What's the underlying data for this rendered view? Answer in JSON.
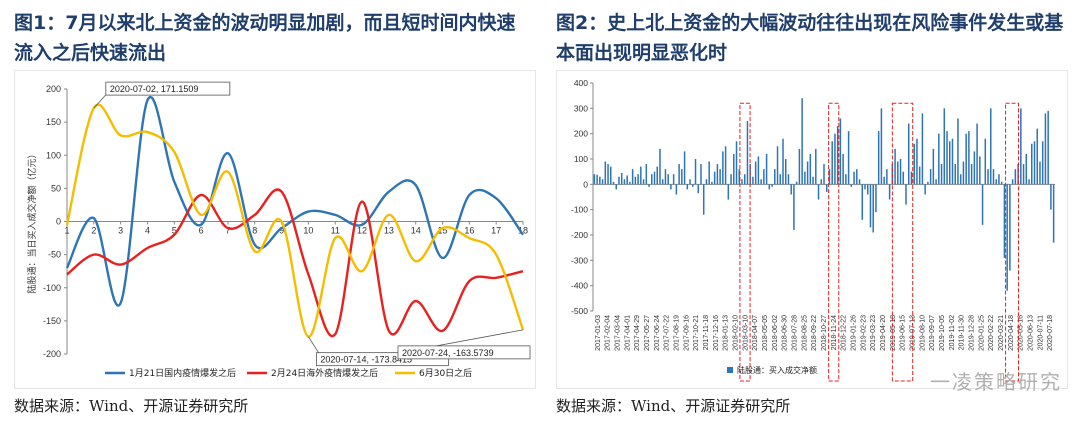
{
  "left": {
    "title": "图1：7月以来北上资金的波动明显加剧，而且短时间内快速流入之后快速流出",
    "source": "数据来源：Wind、开源证券研究所"
  },
  "right": {
    "title": "图2：史上北上资金的大幅波动往往出现在风险事件发生或基本面出现明显恶化时",
    "source": "数据来源：Wind、开源证券研究所"
  },
  "watermark": "一凌策略研究",
  "chart_data": [
    {
      "type": "line",
      "ylabel": "陆股通：当日买入成交净额（亿元）",
      "ylim": [
        -200,
        200
      ],
      "yticks": [
        -200,
        -150,
        -100,
        -50,
        0,
        50,
        100,
        150,
        200
      ],
      "x": [
        1,
        2,
        3,
        4,
        5,
        6,
        7,
        8,
        9,
        10,
        11,
        12,
        13,
        14,
        15,
        16,
        17,
        18
      ],
      "series": [
        {
          "name": "1月21日国内疫情爆发之后",
          "color": "#2e75b6",
          "values": [
            -70,
            5,
            -123,
            183,
            60,
            -5,
            103,
            -35,
            -10,
            15,
            10,
            -5,
            45,
            55,
            -55,
            40,
            35,
            -20
          ]
        },
        {
          "name": "2月24日海外疫情爆发之后",
          "color": "#e8211f",
          "values": [
            -80,
            -50,
            -65,
            -40,
            -20,
            40,
            -10,
            10,
            45,
            -80,
            -170,
            30,
            -165,
            -120,
            -165,
            -90,
            -85,
            -75
          ]
        },
        {
          "name": "6月30日之后",
          "color": "#f5bd00",
          "values": [
            -5,
            171.1509,
            130,
            135,
            105,
            10,
            75,
            -45,
            0,
            -173.8415,
            -25,
            -75,
            10,
            -60,
            -10,
            -25,
            -50,
            -163.5739
          ]
        }
      ],
      "annotations": [
        {
          "text": "2020-07-02, 171.1509",
          "series": 2,
          "index": 1
        },
        {
          "text": "2020-07-14, -173.8415",
          "series": 2,
          "index": 9
        },
        {
          "text": "2020-07-24, -163.5739",
          "series": 2,
          "index": 17
        }
      ],
      "legend": "bottom"
    },
    {
      "type": "bar",
      "ylim": [
        -500,
        400
      ],
      "yticks": [
        -500,
        -400,
        -300,
        -200,
        -100,
        0,
        100,
        200,
        300,
        400
      ],
      "series": [
        {
          "name": "陆股通：买入成交净额",
          "color": "#2e75b6"
        }
      ],
      "xlabels": [
        "2017-01-03",
        "2017-02-04",
        "2017-03-04",
        "2017-04-01",
        "2017-04-29",
        "2017-05-27",
        "2017-06-24",
        "2017-07-22",
        "2017-08-19",
        "2017-09-16",
        "2017-10-21",
        "2017-11-18",
        "2017-12-16",
        "2018-01-13",
        "2018-02-10",
        "2018-03-10",
        "2018-04-07",
        "2018-05-05",
        "2018-06-02",
        "2018-06-30",
        "2018-07-28",
        "2018-08-25",
        "2018-09-22",
        "2018-10-27",
        "2018-11-24",
        "2018-12-22",
        "2019-01-26",
        "2019-02-23",
        "2019-03-23",
        "2019-04-20",
        "2019-05-18",
        "2019-06-15",
        "2019-07-13",
        "2019-08-10",
        "2019-09-07",
        "2019-10-05",
        "2019-11-02",
        "2019-11-30",
        "2019-12-28",
        "2020-01-25",
        "2020-02-22",
        "2020-03-21",
        "2020-04-18",
        "2020-05-16",
        "2020-06-13",
        "2020-07-11",
        "2020-07-18"
      ],
      "values": [
        40,
        38,
        30,
        20,
        90,
        80,
        70,
        10,
        -20,
        30,
        45,
        20,
        35,
        10,
        60,
        30,
        40,
        70,
        20,
        80,
        -10,
        40,
        50,
        70,
        140,
        20,
        60,
        40,
        -20,
        40,
        -40,
        80,
        60,
        130,
        -20,
        20,
        -10,
        100,
        -35,
        80,
        -120,
        20,
        90,
        10,
        50,
        80,
        60,
        130,
        150,
        -60,
        40,
        120,
        170,
        60,
        20,
        40,
        250,
        80,
        30,
        90,
        110,
        20,
        60,
        120,
        -20,
        -10,
        60,
        150,
        40,
        180,
        100,
        40,
        -40,
        -180,
        10,
        140,
        340,
        50,
        90,
        120,
        30,
        140,
        -60,
        20,
        80,
        -30,
        60,
        170,
        200,
        230,
        260,
        120,
        40,
        210,
        -10,
        50,
        60,
        20,
        -140,
        -20,
        -40,
        -170,
        -190,
        -110,
        210,
        300,
        30,
        60,
        -60,
        80,
        140,
        90,
        100,
        50,
        -80,
        240,
        50,
        160,
        180,
        70,
        280,
        -40,
        10,
        60,
        140,
        20,
        200,
        80,
        300,
        210,
        170,
        180,
        80,
        260,
        40,
        90,
        200,
        210,
        80,
        130,
        240,
        110,
        -160,
        180,
        60,
        300,
        60,
        20,
        40,
        10,
        -290,
        -420,
        -340,
        20,
        60,
        80,
        300,
        80,
        120,
        20,
        160,
        170,
        220,
        90,
        170,
        280,
        290,
        -100,
        -230
      ]
    }
  ]
}
